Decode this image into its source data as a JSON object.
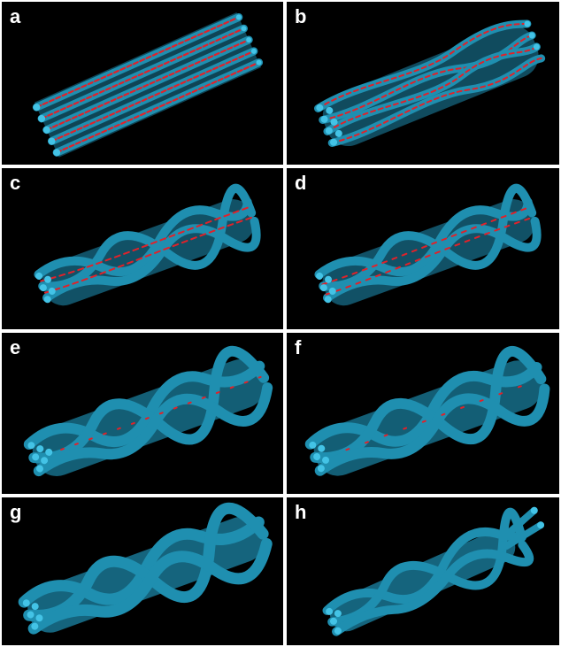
{
  "panels": [
    {
      "label": "a"
    },
    {
      "label": "b"
    },
    {
      "label": "c"
    },
    {
      "label": "d"
    },
    {
      "label": "e"
    },
    {
      "label": "f"
    },
    {
      "label": "g"
    },
    {
      "label": "h"
    }
  ],
  "colors": {
    "background": "#000000",
    "fiber": "#1f8fb0",
    "fiber_highlight": "#43c3e6",
    "fiber_dark": "#0f5d78",
    "core": "#e0222a",
    "divider": "#ffffff"
  }
}
